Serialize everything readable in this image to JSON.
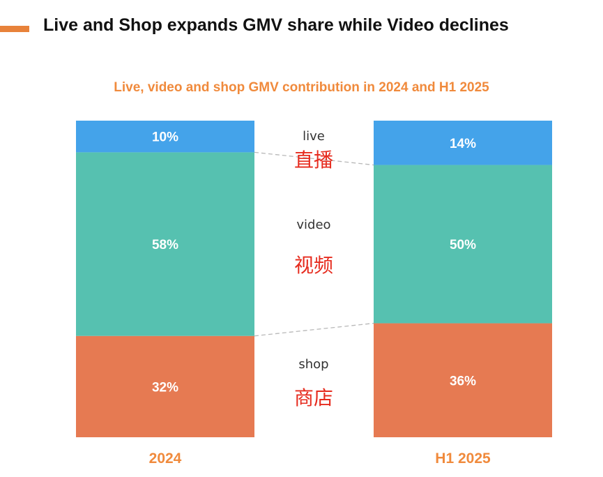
{
  "header": {
    "title": "Live and Shop expands GMV share while Video declines"
  },
  "chart_data": {
    "type": "bar",
    "stacked": true,
    "normalized": true,
    "title": "Live, video and shop GMV contribution in 2024 and H1 2025",
    "xlabel": "",
    "ylabel": "",
    "categories": [
      "2024",
      "H1 2025"
    ],
    "series": [
      {
        "name": "shop",
        "name_zh": "商店",
        "values": [
          32,
          36
        ],
        "labels": [
          "32%",
          "36%"
        ],
        "color": "#e67a52"
      },
      {
        "name": "video",
        "name_zh": "视频",
        "values": [
          58,
          50
        ],
        "labels": [
          "58%",
          "50%"
        ],
        "color": "#56c1b0"
      },
      {
        "name": "live",
        "name_zh": "直播",
        "values": [
          10,
          14
        ],
        "labels": [
          "10%",
          "14%"
        ],
        "color": "#44a3ea"
      }
    ],
    "ylim": [
      0,
      100
    ],
    "legend": "center-between-bars",
    "grid": false
  },
  "colors": {
    "accent": "#e8823a",
    "title": "#f08a3c",
    "series_name": "#333333",
    "series_name_zh": "#e62b1e",
    "connector": "#b8b8b8"
  }
}
